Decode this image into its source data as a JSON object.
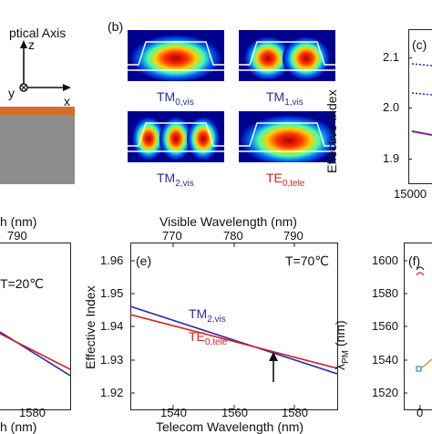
{
  "panel_a": {
    "axis_title": "ptical Axis",
    "z_label": "z",
    "y_label": "y",
    "x_label": "x"
  },
  "panel_b": {
    "label": "(b)",
    "modes": [
      {
        "name": "TM",
        "sub": "0,vis",
        "color": "#2a2aa8"
      },
      {
        "name": "TM",
        "sub": "1,vis",
        "color": "#2a2aa8"
      },
      {
        "name": "TM",
        "sub": "2,vis",
        "color": "#2a2aa8"
      },
      {
        "name": "TE",
        "sub": "0,tele",
        "color": "#d42020"
      }
    ]
  },
  "panel_c": {
    "label": "(c)",
    "ylabel": "Effective Index",
    "yticks": [
      "2.1",
      "2.0",
      "1.9"
    ],
    "xtick": "15000"
  },
  "panel_d": {
    "top_axis_fragment": "h (nm)",
    "top_tick": "790",
    "temp_fragment": "T=20℃",
    "bottom_tick": "1580",
    "bottom_axis_fragment": "h (nm)"
  },
  "panel_e": {
    "label": "(e)",
    "top_axis_title": "Visible Wavelength (nm)",
    "top_ticks": [
      "770",
      "780",
      "790"
    ],
    "bottom_axis_title": "Telecom Wavelength (nm)",
    "bottom_ticks": [
      "1540",
      "1560",
      "1580"
    ],
    "ylabel": "Effective Index",
    "yticks": [
      "1.96",
      "1.95",
      "1.94",
      "1.93",
      "1.92"
    ],
    "temperature": "T=70℃",
    "tm_label": "TM",
    "tm_sub": "2,vis",
    "te_label": "TE",
    "te_sub": "0,tele",
    "tm_color": "#2a2aa8",
    "te_color": "#d42020"
  },
  "panel_f": {
    "label": "(f)",
    "ylabel": "λ",
    "ylabel_sub": "PM",
    "ylabel_unit": "(nm)",
    "yticks": [
      "1600",
      "1580",
      "1560",
      "1540",
      "1520"
    ],
    "xtick": "0"
  },
  "chart_data": [
    {
      "type": "line",
      "title": "",
      "xlabel": "Telecom Wavelength (nm)",
      "x2label": "Visible Wavelength (nm)",
      "ylabel": "Effective Index",
      "xlim": [
        1525,
        1597
      ],
      "ylim": [
        1.915,
        1.965
      ],
      "series": [
        {
          "name": "TM2,vis",
          "x": [
            1525,
            1597
          ],
          "y": [
            1.9485,
            1.9195
          ],
          "color": "#2a2aa8"
        },
        {
          "name": "TE0,tele",
          "x": [
            1525,
            1597
          ],
          "y": [
            1.9455,
            1.9215
          ],
          "color": "#d42020"
        }
      ],
      "annotations": [
        "T=70℃"
      ]
    }
  ]
}
